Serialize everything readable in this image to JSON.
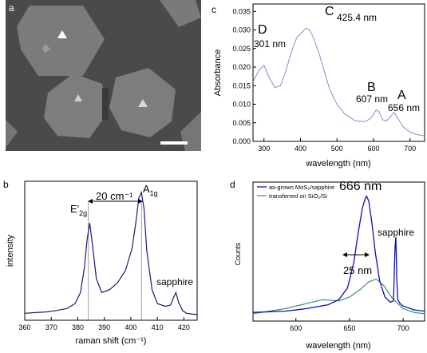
{
  "figure": {
    "panel_a": {
      "letter": "a",
      "scale_bar_color": "#ffffff",
      "background_color": "#4a4a4a",
      "flake_color": "#7b7b7b"
    },
    "panel_b": {
      "letter": "b",
      "xlabel": "raman shift (cm⁻¹)",
      "ylabel": "intensity",
      "peak_E_main": "E'",
      "peak_E_sub": "2g",
      "peak_A_main": "A",
      "peak_A_sub": "1g",
      "separation_label": "20 cm⁻¹",
      "sapphire_label": "sapphire",
      "line_color": "#1a1a7a"
    },
    "panel_c": {
      "letter": "c",
      "xlabel": "wavelength (nm)",
      "ylabel": "Absorbance",
      "annotations": [
        {
          "letter": "D",
          "text": "301 nm"
        },
        {
          "letter": "C",
          "text": "425.4 nm"
        },
        {
          "letter": "B",
          "text": "607 nm"
        },
        {
          "letter": "A",
          "text": "656 nm"
        }
      ],
      "line_color": "#8a8ad8"
    },
    "panel_d": {
      "letter": "d",
      "xlabel": "wavelength (nm)",
      "ylabel": "Counts",
      "peak_label": "666 nm",
      "fwhm_label": "25 nm",
      "sapphire_label": "sapphire",
      "legend": [
        {
          "text": "as-grown MoS₂/sapphire",
          "color": "#1010b0"
        },
        {
          "text": "transferred on SiO₂/Si",
          "color": "#2a8a7a"
        }
      ]
    }
  },
  "chart_data": [
    {
      "type": "line",
      "title": "",
      "xlabel": "raman shift (cm⁻¹)",
      "ylabel": "intensity",
      "xlim": [
        360,
        425
      ],
      "xticks": [
        360,
        370,
        380,
        390,
        400,
        410,
        420
      ],
      "yticks_shown": false,
      "series": [
        {
          "x": [
            360,
            364,
            368,
            372,
            376,
            379,
            381,
            382.5,
            383.5,
            384.5,
            385.5,
            387,
            389,
            392,
            395,
            398,
            400.5,
            402,
            403,
            404,
            405,
            406,
            408,
            410,
            413,
            415,
            416,
            417,
            418,
            419.5,
            421,
            425
          ],
          "y": [
            0.05,
            0.055,
            0.06,
            0.07,
            0.085,
            0.12,
            0.2,
            0.38,
            0.58,
            0.7,
            0.55,
            0.3,
            0.2,
            0.22,
            0.27,
            0.36,
            0.52,
            0.72,
            0.88,
            0.92,
            0.8,
            0.5,
            0.22,
            0.12,
            0.1,
            0.11,
            0.16,
            0.2,
            0.13,
            0.07,
            0.05,
            0.04
          ]
        }
      ],
      "markers": [
        384,
        404
      ]
    },
    {
      "type": "line",
      "title": "",
      "xlabel": "wavelength (nm)",
      "ylabel": "Absorbance",
      "xlim": [
        270,
        740
      ],
      "ylim": [
        0,
        0.037
      ],
      "xticks": [
        300,
        400,
        500,
        600,
        700
      ],
      "yticks": [
        0.0,
        0.005,
        0.01,
        0.015,
        0.02,
        0.025,
        0.03,
        0.035
      ],
      "series": [
        {
          "x": [
            270,
            285,
            300,
            315,
            330,
            345,
            360,
            375,
            390,
            405,
            415,
            425,
            435,
            450,
            465,
            480,
            500,
            520,
            550,
            575,
            590,
            600,
            607,
            615,
            625,
            635,
            645,
            656,
            665,
            680,
            700,
            720,
            740
          ],
          "y": [
            0.016,
            0.019,
            0.0205,
            0.017,
            0.0145,
            0.015,
            0.019,
            0.024,
            0.028,
            0.0295,
            0.0305,
            0.03,
            0.028,
            0.024,
            0.019,
            0.014,
            0.01,
            0.0075,
            0.0055,
            0.0053,
            0.006,
            0.0072,
            0.0085,
            0.008,
            0.0058,
            0.0055,
            0.0065,
            0.0078,
            0.0065,
            0.004,
            0.0025,
            0.0018,
            0.0015
          ]
        }
      ]
    },
    {
      "type": "line",
      "title": "",
      "xlabel": "wavelength (nm)",
      "ylabel": "Counts",
      "xlim": [
        560,
        720
      ],
      "xticks": [
        600,
        650,
        700
      ],
      "yticks_shown": false,
      "series": [
        {
          "name": "as-grown MoS₂/sapphire",
          "x": [
            560,
            590,
            610,
            630,
            640,
            648,
            654,
            658,
            662,
            665,
            666,
            668,
            671,
            674,
            678,
            683,
            688,
            691,
            692.5,
            693.2,
            694,
            695,
            697,
            700,
            710,
            720
          ],
          "y": [
            0.03,
            0.04,
            0.06,
            0.09,
            0.13,
            0.22,
            0.42,
            0.65,
            0.85,
            0.93,
            0.94,
            0.9,
            0.72,
            0.5,
            0.28,
            0.15,
            0.11,
            0.12,
            0.55,
            0.62,
            0.3,
            0.13,
            0.1,
            0.08,
            0.05,
            0.04
          ]
        },
        {
          "name": "transferred on SiO₂/Si",
          "x": [
            560,
            590,
            610,
            625,
            640,
            650,
            660,
            668,
            675,
            682,
            690,
            700,
            710,
            720
          ],
          "y": [
            0.02,
            0.06,
            0.1,
            0.13,
            0.12,
            0.15,
            0.21,
            0.27,
            0.29,
            0.24,
            0.14,
            0.06,
            0.03,
            0.02
          ]
        }
      ]
    }
  ]
}
